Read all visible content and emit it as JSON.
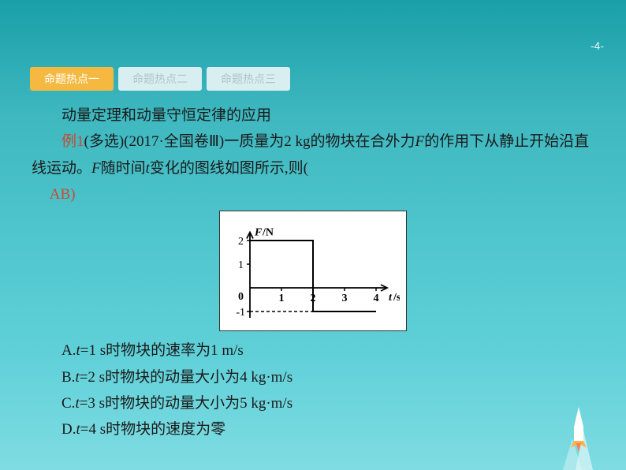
{
  "page_number": "-4-",
  "tabs": [
    {
      "label": "命题热点一",
      "active": true
    },
    {
      "label": "命题热点二",
      "active": false
    },
    {
      "label": "命题热点三",
      "active": false
    }
  ],
  "heading": "动量定理和动量守恒定律的应用",
  "example_label": "例1",
  "example_meta": "(多选)(2017·全国卷Ⅲ)",
  "problem_part1": "一质量为2 kg的物块在合外力",
  "problem_F": "F",
  "problem_part2": "的作用下从静止开始沿直线运动。",
  "problem_part3": "随时间",
  "problem_t": "t",
  "problem_part4": "变化的图线如图所示,则(",
  "answer": "AB",
  "chart": {
    "type": "line",
    "y_label": "F/N",
    "x_label": "t/s",
    "x_ticks": [
      "0",
      "1",
      "2",
      "3",
      "4"
    ],
    "y_ticks": [
      "2",
      "1",
      "-1"
    ],
    "xlim": [
      0,
      4.2
    ],
    "ylim": [
      -1.5,
      2.4
    ],
    "series": [
      {
        "x": 0,
        "y": 2
      },
      {
        "x": 2,
        "y": 2
      },
      {
        "x": 2,
        "y": -1
      },
      {
        "x": 4,
        "y": -1
      }
    ],
    "dash_lines": [
      [
        [
          2,
          0
        ],
        [
          2,
          2
        ]
      ],
      [
        [
          2,
          -1
        ],
        [
          2,
          0
        ]
      ],
      [
        [
          0,
          -1
        ],
        [
          2,
          -1
        ]
      ]
    ],
    "stroke_color": "#000000",
    "stroke_width": 2,
    "dash_color": "#000000",
    "background": "#ffffff"
  },
  "choices": [
    {
      "letter": "A.",
      "t": "t",
      "eq": "=1 s时物块的速率为1 m/s"
    },
    {
      "letter": "B.",
      "t": "t",
      "eq": "=2 s时物块的动量大小为4 kg·m/s"
    },
    {
      "letter": "C.",
      "t": "t",
      "eq": "=3 s时物块的动量大小为5 kg·m/s"
    },
    {
      "letter": "D.",
      "t": "t",
      "eq": "=4 s时物块的速度为零"
    }
  ],
  "rocket_colors": {
    "body": "#fff",
    "flame1": "#ffb347",
    "flame2": "#ff7f50",
    "trail": "#b0e8ec"
  }
}
